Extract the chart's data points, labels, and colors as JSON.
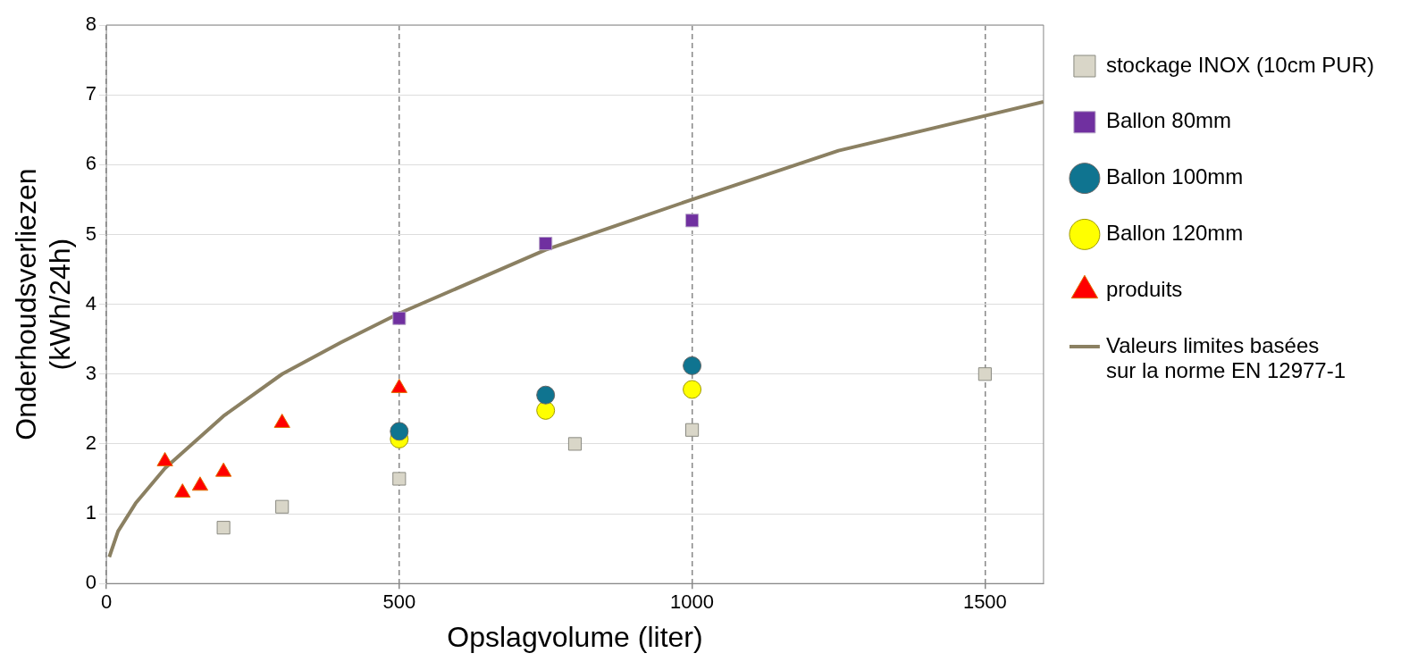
{
  "chart_data": {
    "type": "scatter",
    "xlabel": "Opslagvolume (liter)",
    "ylabel": "Onderhoudsverliezen (kWh/24h)",
    "xlim": [
      0,
      1600
    ],
    "ylim": [
      0,
      8
    ],
    "xticks": [
      0,
      500,
      1000,
      1500
    ],
    "yticks": [
      0,
      1,
      2,
      3,
      4,
      5,
      6,
      7,
      8
    ],
    "grid": true,
    "legend": "right",
    "series": [
      {
        "name": "stockage INOX (10cm PUR)",
        "color": "#d9d6c8",
        "marker": "square",
        "x": [
          200,
          300,
          500,
          800,
          1000,
          1500
        ],
        "values": [
          0.8,
          1.1,
          1.5,
          2.0,
          2.2,
          3.0
        ]
      },
      {
        "name": "Ballon 80mm",
        "color": "#7030a0",
        "marker": "square",
        "x": [
          500,
          750,
          1000
        ],
        "values": [
          3.8,
          4.87,
          5.2
        ]
      },
      {
        "name": "Ballon 100mm",
        "color": "#0f7490",
        "marker": "circle",
        "x": [
          500,
          750,
          1000
        ],
        "values": [
          2.18,
          2.7,
          3.12
        ]
      },
      {
        "name": "Ballon 120mm",
        "color": "#ffff00",
        "marker": "circle",
        "x": [
          500,
          750,
          1000
        ],
        "values": [
          2.07,
          2.48,
          2.78
        ]
      },
      {
        "name": "produits",
        "color": "#ff0000",
        "marker": "triangle",
        "x": [
          100,
          130,
          160,
          200,
          300,
          500
        ],
        "values": [
          1.75,
          1.3,
          1.4,
          1.6,
          2.3,
          2.8
        ]
      },
      {
        "name": "Valeurs limites basées sur la norme EN 12977-1",
        "type": "line",
        "color": "#8b8062",
        "marker": "none",
        "x": [
          5,
          20,
          50,
          100,
          200,
          300,
          400,
          500,
          750,
          1000,
          1250,
          1500,
          1600
        ],
        "values": [
          0.38,
          0.75,
          1.15,
          1.65,
          2.4,
          3.0,
          3.45,
          3.87,
          4.78,
          5.5,
          6.2,
          6.7,
          6.9
        ]
      }
    ]
  }
}
